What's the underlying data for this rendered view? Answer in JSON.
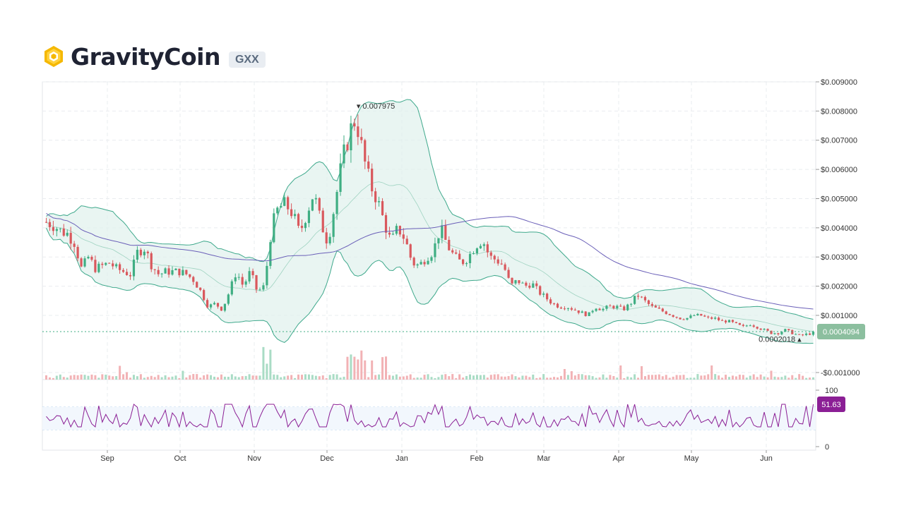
{
  "header": {
    "title": "GravityCoin",
    "ticker": "GXX"
  },
  "colors": {
    "up": "#3fae83",
    "down": "#d9585d",
    "band_fill": "#dff1ec",
    "band_line": "#3fa98c",
    "sma_long": "#6a5fb8",
    "rsi": "#8b1f95",
    "price_tag": "#8cbf9f",
    "rsi_tag": "#8b1f95"
  },
  "chart_data": {
    "type": "candlestick",
    "y_axis": {
      "ticks": [
        "$0.009000",
        "$0.008000",
        "$0.007000",
        "$0.006000",
        "$0.005000",
        "$0.004000",
        "$0.003000",
        "$0.002000",
        "$0.001000",
        "-$0.001000"
      ],
      "range": [
        -0.0012,
        0.009
      ]
    },
    "x_axis": {
      "ticks": [
        "Sep",
        "Oct",
        "Nov",
        "Dec",
        "Jan",
        "Feb",
        "Mar",
        "Apr",
        "May",
        "Jun"
      ]
    },
    "price_anchors": [
      [
        0,
        0.0042
      ],
      [
        10,
        0.0041
      ],
      [
        20,
        0.0039
      ],
      [
        30,
        0.0038
      ],
      [
        40,
        0.0035
      ],
      [
        50,
        0.0026
      ],
      [
        60,
        0.003
      ],
      [
        70,
        0.0026
      ],
      [
        80,
        0.0027
      ],
      [
        90,
        0.0028
      ],
      [
        100,
        0.0026
      ],
      [
        110,
        0.0025
      ],
      [
        120,
        0.0024
      ],
      [
        130,
        0.0032
      ],
      [
        140,
        0.0033
      ],
      [
        150,
        0.0027
      ],
      [
        160,
        0.0024
      ],
      [
        170,
        0.0025
      ],
      [
        180,
        0.0025
      ],
      [
        190,
        0.0025
      ],
      [
        200,
        0.0024
      ],
      [
        210,
        0.0022
      ],
      [
        220,
        0.0018
      ],
      [
        230,
        0.0013
      ],
      [
        240,
        0.0014
      ],
      [
        250,
        0.0012
      ],
      [
        260,
        0.0018
      ],
      [
        270,
        0.0025
      ],
      [
        280,
        0.002
      ],
      [
        290,
        0.0025
      ],
      [
        300,
        0.0018
      ],
      [
        310,
        0.002
      ],
      [
        320,
        0.004
      ],
      [
        330,
        0.0047
      ],
      [
        340,
        0.0048
      ],
      [
        350,
        0.0045
      ],
      [
        360,
        0.0038
      ],
      [
        370,
        0.0045
      ],
      [
        380,
        0.0052
      ],
      [
        390,
        0.0042
      ],
      [
        400,
        0.0035
      ],
      [
        410,
        0.0048
      ],
      [
        420,
        0.0062
      ],
      [
        430,
        0.0072
      ],
      [
        440,
        0.0078
      ],
      [
        450,
        0.0065
      ],
      [
        460,
        0.0055
      ],
      [
        470,
        0.005
      ],
      [
        480,
        0.0042
      ],
      [
        490,
        0.0035
      ],
      [
        500,
        0.004
      ],
      [
        510,
        0.0036
      ],
      [
        520,
        0.0028
      ],
      [
        530,
        0.0027
      ],
      [
        540,
        0.003
      ],
      [
        550,
        0.0032
      ],
      [
        560,
        0.004
      ],
      [
        570,
        0.0034
      ],
      [
        580,
        0.003
      ],
      [
        590,
        0.0028
      ],
      [
        600,
        0.003
      ],
      [
        610,
        0.0034
      ],
      [
        620,
        0.0036
      ],
      [
        630,
        0.003
      ],
      [
        640,
        0.0029
      ],
      [
        650,
        0.0027
      ],
      [
        660,
        0.002
      ],
      [
        670,
        0.0022
      ],
      [
        680,
        0.002
      ],
      [
        690,
        0.0021
      ],
      [
        700,
        0.0018
      ],
      [
        710,
        0.0016
      ],
      [
        720,
        0.0014
      ],
      [
        730,
        0.0013
      ],
      [
        740,
        0.0013
      ],
      [
        750,
        0.0012
      ],
      [
        760,
        0.0011
      ],
      [
        770,
        0.001
      ],
      [
        780,
        0.0013
      ],
      [
        790,
        0.0012
      ],
      [
        800,
        0.0013
      ],
      [
        810,
        0.0013
      ],
      [
        820,
        0.0012
      ],
      [
        830,
        0.0014
      ],
      [
        840,
        0.0017
      ],
      [
        850,
        0.0015
      ],
      [
        860,
        0.0013
      ],
      [
        870,
        0.0012
      ],
      [
        880,
        0.0011
      ],
      [
        890,
        0.001
      ],
      [
        900,
        0.0009
      ],
      [
        910,
        0.0009
      ],
      [
        920,
        0.001
      ],
      [
        930,
        0.001
      ],
      [
        940,
        0.0009
      ],
      [
        950,
        0.0009
      ],
      [
        960,
        0.0008
      ],
      [
        970,
        0.0008
      ],
      [
        980,
        0.0007
      ],
      [
        990,
        0.0006
      ],
      [
        1000,
        0.0007
      ],
      [
        1010,
        0.0006
      ],
      [
        1020,
        0.0005
      ],
      [
        1030,
        0.0004
      ],
      [
        1040,
        0.0004
      ],
      [
        1050,
        0.0005
      ],
      [
        1060,
        0.0004
      ],
      [
        1070,
        0.0003
      ],
      [
        1080,
        0.00035
      ],
      [
        1090,
        0.0004
      ]
    ],
    "annotations": {
      "high_label": "0.007975",
      "low_label": "0.0002018"
    },
    "current_price": "0.0004094",
    "rsi": {
      "ticks": [
        "100",
        "0"
      ],
      "current": "51.63",
      "overbought": 70,
      "oversold": 30
    }
  }
}
